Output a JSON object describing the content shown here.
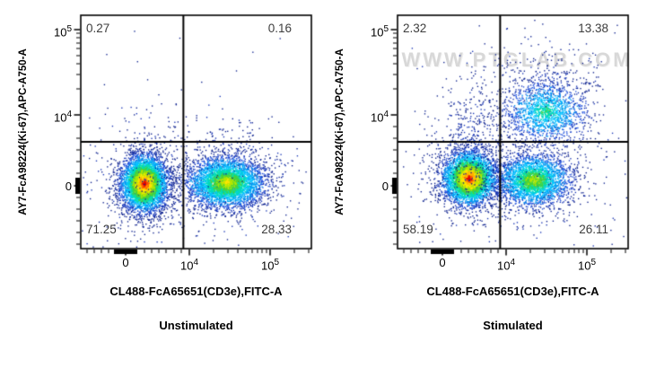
{
  "figure_type": "flow-cytometry-dual-dot-plot",
  "colors": {
    "background": "#ffffff",
    "axis": "#000000",
    "quadrant_line": "#000000",
    "quadrant_label": "#3d3d3d",
    "watermark": "#d8d8d8",
    "density_palette": [
      [
        0.96,
        "#e00000"
      ],
      [
        0.9,
        "#ff5a00"
      ],
      [
        0.84,
        "#ffb000"
      ],
      [
        0.77,
        "#ffe600"
      ],
      [
        0.69,
        "#b4e600"
      ],
      [
        0.6,
        "#46d23c"
      ],
      [
        0.51,
        "#00ddb4"
      ],
      [
        0.42,
        "#00c3ff"
      ],
      [
        0.32,
        "#0096f0"
      ],
      [
        0.22,
        "#1e50dc"
      ],
      [
        0.12,
        "#1432b4"
      ],
      [
        0.0,
        "#0a1e8c"
      ]
    ]
  },
  "chart_data": [
    {
      "type": "scatter",
      "subtype": "flow-cytometry-pseudocolor",
      "title": "Unstimulated",
      "xlabel": "CL488-FcA65651(CD3e),FITC-A",
      "ylabel": "AY7-FcA98224(Ki-67),APC-A750-A",
      "scale": "biexponential",
      "x_ticks": [
        {
          "label": "0"
        },
        {
          "base": "10",
          "exp": "4"
        },
        {
          "base": "10",
          "exp": "5"
        }
      ],
      "y_ticks": [
        {
          "base": "10",
          "exp": "5"
        },
        {
          "base": "10",
          "exp": "4"
        },
        {
          "label": "0"
        }
      ],
      "quadrants": {
        "top_left": "0.27",
        "top_right": "0.16",
        "bottom_left": "71.25",
        "bottom_right": "28.33"
      },
      "gate": {
        "x": 0.445,
        "y": 0.542
      },
      "watermark": "",
      "populations": [
        {
          "name": "CD3- Ki67- lymphocytes",
          "cx": 0.273,
          "cy": 0.719,
          "sx": 0.051,
          "sy": 0.061,
          "n": 4500,
          "intensity": 1.0
        },
        {
          "name": "CD3+ Ki67- T cells",
          "cx": 0.629,
          "cy": 0.715,
          "sx": 0.086,
          "sy": 0.056,
          "n": 4000,
          "intensity": 0.8
        },
        {
          "name": "sparse above gate left",
          "cx": 0.3,
          "cy": 0.5,
          "sx": 0.09,
          "sy": 0.1,
          "n": 45,
          "intensity": 0.15
        },
        {
          "name": "sparse above gate right",
          "cx": 0.63,
          "cy": 0.55,
          "sx": 0.14,
          "sy": 0.05,
          "n": 90,
          "intensity": 0.15
        },
        {
          "name": "background noise",
          "type": "uniform",
          "n": 28,
          "intensity": 0.1
        }
      ]
    },
    {
      "type": "scatter",
      "subtype": "flow-cytometry-pseudocolor",
      "title": "Stimulated",
      "xlabel": "CL488-FcA65651(CD3e),FITC-A",
      "ylabel": "AY7-FcA98224(Ki-67),APC-A750-A",
      "scale": "biexponential",
      "x_ticks": [
        {
          "label": "0"
        },
        {
          "base": "10",
          "exp": "4"
        },
        {
          "base": "10",
          "exp": "5"
        }
      ],
      "y_ticks": [
        {
          "base": "10",
          "exp": "5"
        },
        {
          "base": "10",
          "exp": "4"
        },
        {
          "label": "0"
        }
      ],
      "quadrants": {
        "top_left": "2.32",
        "top_right": "13.38",
        "bottom_left": "58.19",
        "bottom_right": "26.11"
      },
      "gate": {
        "x": 0.445,
        "y": 0.542
      },
      "watermark": "WWW.PTGLAB.COM",
      "populations": [
        {
          "name": "CD3- Ki67- lymphocytes",
          "cx": 0.309,
          "cy": 0.696,
          "sx": 0.059,
          "sy": 0.058,
          "n": 4000,
          "intensity": 1.0
        },
        {
          "name": "CD3+ Ki67- T cells",
          "cx": 0.586,
          "cy": 0.704,
          "sx": 0.082,
          "sy": 0.058,
          "n": 2800,
          "intensity": 0.75
        },
        {
          "name": "CD3+ Ki67+ proliferating",
          "cx": 0.64,
          "cy": 0.41,
          "sx": 0.092,
          "sy": 0.068,
          "n": 1700,
          "intensity": 0.6
        },
        {
          "name": "Ki67+ CD3- tail",
          "cx": 0.33,
          "cy": 0.52,
          "sx": 0.075,
          "sy": 0.13,
          "n": 320,
          "intensity": 0.18
        },
        {
          "name": "upper sparse tail",
          "cx": 0.62,
          "cy": 0.25,
          "sx": 0.12,
          "sy": 0.07,
          "n": 160,
          "intensity": 0.15
        },
        {
          "name": "background noise",
          "type": "uniform",
          "n": 40,
          "intensity": 0.1
        }
      ]
    }
  ]
}
